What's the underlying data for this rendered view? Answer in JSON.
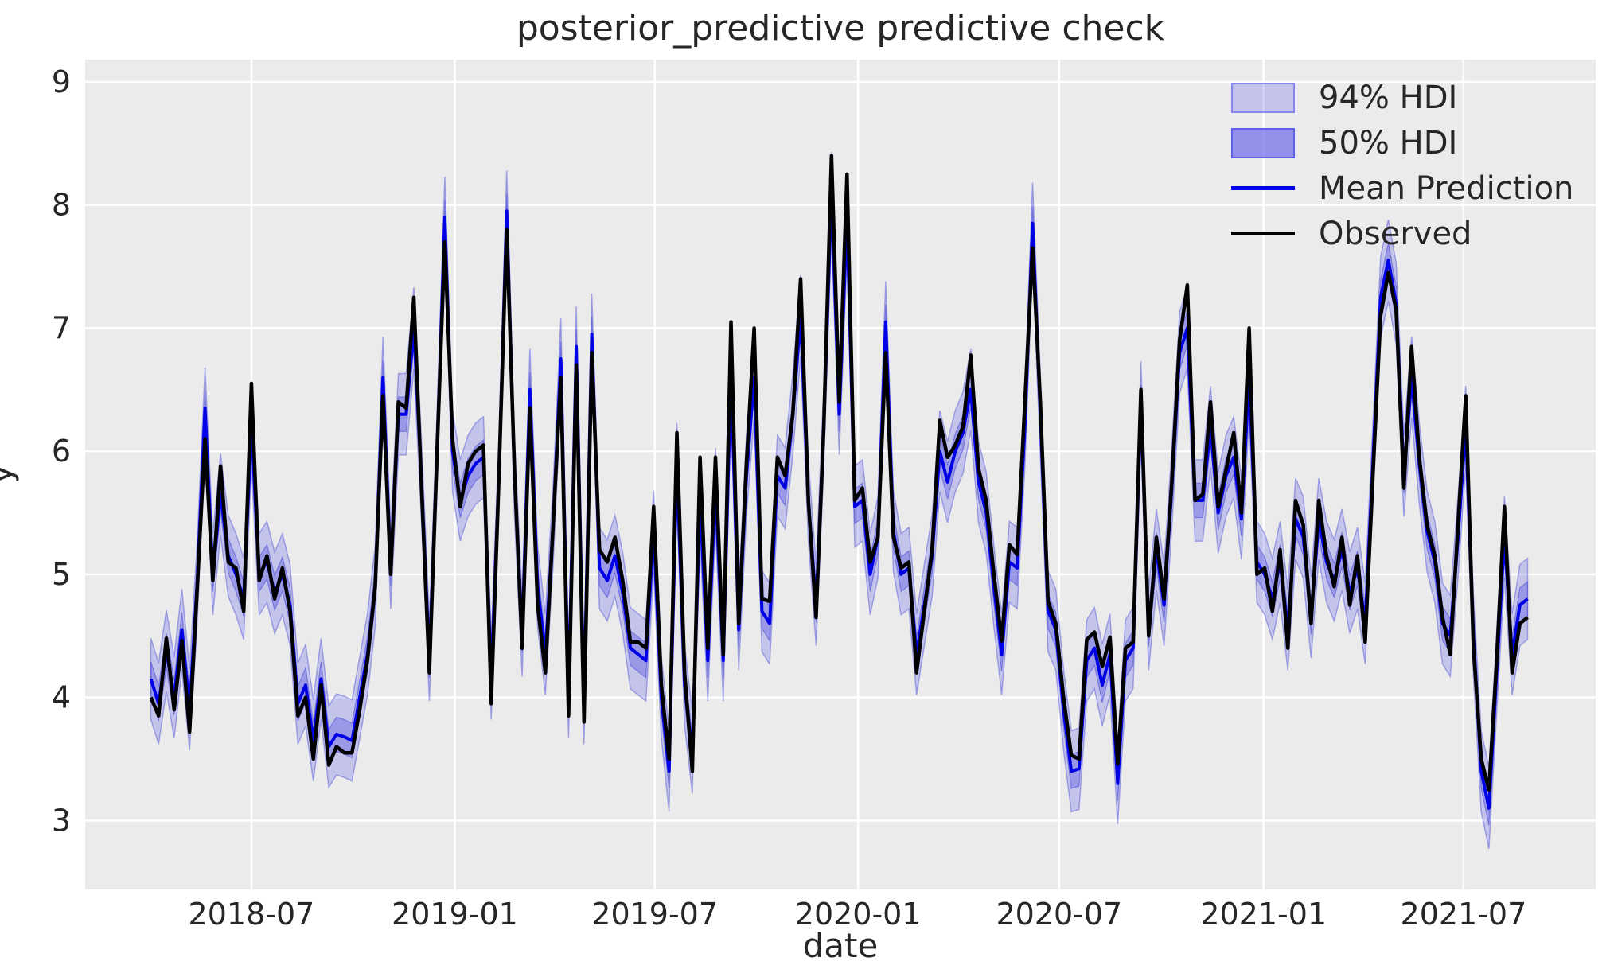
{
  "chart_data": {
    "type": "line",
    "title": "posterior_predictive predictive check",
    "xlabel": "date",
    "ylabel": "y",
    "x_unit": "weekly observations, week index from first point",
    "xlim_weeks": [
      -8.5,
      186.8
    ],
    "ylim": [
      2.44,
      9.18
    ],
    "grid": true,
    "legend_position": "upper right",
    "xticks": [
      {
        "label": "2018-07",
        "week": 13.0
      },
      {
        "label": "2019-01",
        "week": 39.29
      },
      {
        "label": "2019-07",
        "week": 65.14
      },
      {
        "label": "2020-01",
        "week": 91.43
      },
      {
        "label": "2020-07",
        "week": 117.43
      },
      {
        "label": "2021-01",
        "week": 143.86
      },
      {
        "label": "2021-07",
        "week": 169.71
      }
    ],
    "yticks": [
      3,
      4,
      5,
      6,
      7,
      8,
      9
    ],
    "hdi94_halfwidth": 0.33,
    "hdi50_halfwidth": 0.14,
    "legend": [
      {
        "label": "94% HDI",
        "swatch": "band-light"
      },
      {
        "label": "50% HDI",
        "swatch": "band-dark"
      },
      {
        "label": "Mean Prediction",
        "swatch": "blue-line"
      },
      {
        "label": "Observed",
        "swatch": "black-line"
      }
    ],
    "series": [
      {
        "name": "Observed",
        "color": "#000000",
        "values": [
          4.0,
          3.85,
          4.48,
          3.9,
          4.46,
          3.72,
          4.9,
          6.1,
          4.95,
          5.88,
          5.1,
          5.05,
          4.7,
          6.55,
          4.95,
          5.15,
          4.8,
          5.05,
          4.7,
          3.85,
          4.0,
          3.5,
          4.1,
          3.45,
          3.6,
          3.55,
          3.55,
          3.9,
          4.3,
          4.9,
          6.45,
          5.0,
          6.4,
          6.35,
          7.25,
          5.7,
          4.2,
          6.0,
          7.7,
          6.1,
          5.55,
          5.9,
          6.0,
          6.05,
          3.95,
          5.8,
          7.8,
          5.85,
          4.4,
          6.35,
          4.75,
          4.2,
          5.4,
          6.6,
          3.85,
          6.7,
          3.8,
          6.8,
          5.2,
          5.1,
          5.3,
          4.95,
          4.45,
          4.45,
          4.4,
          5.55,
          4.1,
          3.5,
          6.15,
          4.2,
          3.4,
          5.95,
          4.4,
          5.95,
          4.35,
          7.05,
          4.6,
          5.9,
          7.0,
          4.8,
          4.78,
          5.95,
          5.8,
          6.3,
          7.4,
          5.6,
          4.65,
          6.2,
          8.4,
          6.4,
          8.25,
          5.6,
          5.7,
          5.1,
          5.3,
          6.8,
          5.3,
          5.05,
          5.1,
          4.2,
          4.7,
          5.2,
          6.25,
          5.95,
          6.05,
          6.2,
          6.78,
          5.86,
          5.6,
          5.0,
          4.46,
          5.24,
          5.16,
          6.4,
          7.65,
          6.4,
          4.78,
          4.6,
          4.0,
          3.53,
          3.5,
          4.47,
          4.53,
          4.25,
          4.49,
          3.46,
          4.4,
          4.45,
          6.5,
          4.5,
          5.3,
          4.8,
          5.75,
          6.9,
          7.35,
          5.6,
          5.65,
          6.4,
          5.55,
          5.85,
          6.15,
          5.5,
          7.0,
          5.0,
          5.05,
          4.7,
          5.2,
          4.4,
          5.6,
          5.4,
          4.6,
          5.6,
          5.15,
          4.9,
          5.3,
          4.75,
          5.15,
          4.45,
          5.8,
          7.1,
          7.45,
          7.15,
          5.7,
          6.85,
          5.95,
          5.4,
          5.15,
          4.65,
          4.35,
          5.4,
          6.45,
          4.4,
          3.5,
          3.25,
          4.3,
          5.55,
          4.2,
          4.6,
          4.65
        ]
      },
      {
        "name": "Mean Prediction",
        "color": "#0000e6",
        "values": [
          4.15,
          3.95,
          4.38,
          4.0,
          4.55,
          3.9,
          4.95,
          6.35,
          5.0,
          5.65,
          5.15,
          5.0,
          4.8,
          6.2,
          5.0,
          5.1,
          4.85,
          5.0,
          4.75,
          3.95,
          4.1,
          3.65,
          4.15,
          3.6,
          3.7,
          3.68,
          3.65,
          4.0,
          4.35,
          4.9,
          6.6,
          5.05,
          6.3,
          6.3,
          7.0,
          5.75,
          4.3,
          6.0,
          7.9,
          6.0,
          5.6,
          5.8,
          5.9,
          5.95,
          4.15,
          5.8,
          7.95,
          5.8,
          4.5,
          6.5,
          4.9,
          4.35,
          5.4,
          6.75,
          4.0,
          6.85,
          3.95,
          6.95,
          5.05,
          4.95,
          5.15,
          4.85,
          4.4,
          4.35,
          4.3,
          5.35,
          4.0,
          3.4,
          5.9,
          4.1,
          3.55,
          5.6,
          4.3,
          5.7,
          4.3,
          6.65,
          4.55,
          5.8,
          6.6,
          4.7,
          4.6,
          5.8,
          5.7,
          6.3,
          7.1,
          5.6,
          4.75,
          6.2,
          8.1,
          6.3,
          7.9,
          5.55,
          5.6,
          5.0,
          5.3,
          7.05,
          5.35,
          5.0,
          5.05,
          4.35,
          4.75,
          5.15,
          6.0,
          5.75,
          6.0,
          6.15,
          6.5,
          5.75,
          5.5,
          4.9,
          4.35,
          5.1,
          5.05,
          6.2,
          7.85,
          6.3,
          4.7,
          4.55,
          3.9,
          3.4,
          3.42,
          4.3,
          4.4,
          4.1,
          4.35,
          3.3,
          4.3,
          4.4,
          6.4,
          4.55,
          5.2,
          4.75,
          5.7,
          6.8,
          7.0,
          5.6,
          5.6,
          6.2,
          5.5,
          5.8,
          5.95,
          5.45,
          6.6,
          5.1,
          5.0,
          4.8,
          5.1,
          4.55,
          5.45,
          5.3,
          4.65,
          5.45,
          5.1,
          4.95,
          5.2,
          4.85,
          5.05,
          4.6,
          5.9,
          7.25,
          7.55,
          7.2,
          5.8,
          6.6,
          5.9,
          5.35,
          5.1,
          4.6,
          4.5,
          5.3,
          6.2,
          4.5,
          3.4,
          3.1,
          4.2,
          5.3,
          4.35,
          4.75,
          4.8
        ]
      }
    ],
    "colors": {
      "mean_line": "#0000e6",
      "observed_line": "#000000",
      "hdi_fill": "#5555e6",
      "plot_bg": "#ebebeb",
      "grid": "#ffffff",
      "text": "#262626"
    }
  }
}
